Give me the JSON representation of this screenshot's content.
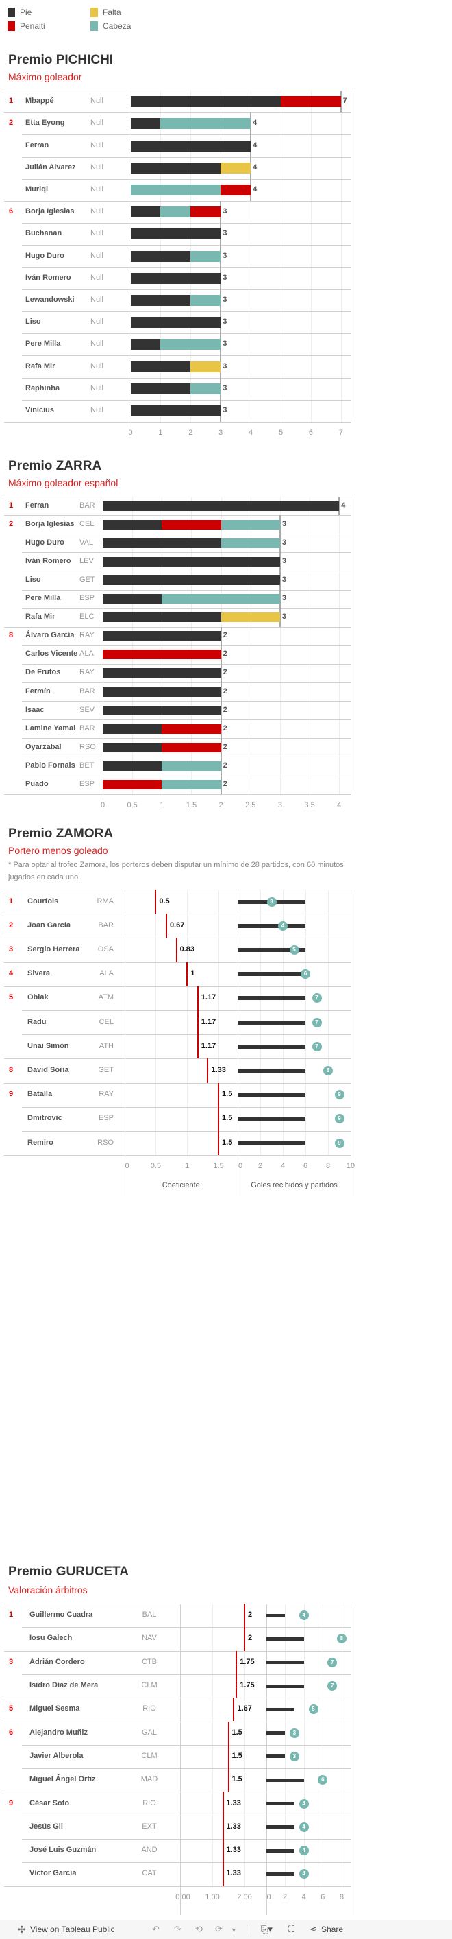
{
  "colors": {
    "Pie": "#333333",
    "Penalti": "#cc0000",
    "Falta": "#e8c547",
    "Cabeza": "#79b8b0",
    "accent": "#dd2222"
  },
  "legend": [
    {
      "label": "Pie",
      "color": "#333333"
    },
    {
      "label": "Penalti",
      "color": "#cc0000"
    },
    {
      "label": "Falta",
      "color": "#e8c547"
    },
    {
      "label": "Cabeza",
      "color": "#79b8b0"
    }
  ],
  "pichichi": {
    "title": "Premio PICHICHI",
    "subtitle": "Máximo goleador",
    "chart_data": {
      "type": "bar",
      "stacked": true,
      "xlim": [
        0,
        7.3
      ],
      "ticks": [
        "0",
        "1",
        "2",
        "3",
        "4",
        "5",
        "6",
        "7"
      ],
      "rows": [
        {
          "rank": "1",
          "name": "Mbappé",
          "team": "Null",
          "total": 7,
          "segments": [
            [
              "Pie",
              5
            ],
            [
              "Penalti",
              2
            ]
          ]
        },
        {
          "rank": "2",
          "name": "Etta Eyong",
          "team": "Null",
          "total": 4,
          "segments": [
            [
              "Pie",
              1
            ],
            [
              "Cabeza",
              3
            ]
          ]
        },
        {
          "rank": "",
          "name": "Ferran",
          "team": "Null",
          "total": 4,
          "segments": [
            [
              "Pie",
              4
            ]
          ]
        },
        {
          "rank": "",
          "name": "Julián Alvarez",
          "team": "Null",
          "total": 4,
          "segments": [
            [
              "Pie",
              3
            ],
            [
              "Falta",
              1
            ]
          ]
        },
        {
          "rank": "",
          "name": "Muriqi",
          "team": "Null",
          "total": 4,
          "segments": [
            [
              "Cabeza",
              3
            ],
            [
              "Penalti",
              1
            ]
          ]
        },
        {
          "rank": "6",
          "name": "Borja Iglesias",
          "team": "Null",
          "total": 3,
          "segments": [
            [
              "Pie",
              1
            ],
            [
              "Cabeza",
              1
            ],
            [
              "Penalti",
              1
            ]
          ]
        },
        {
          "rank": "",
          "name": "Buchanan",
          "team": "Null",
          "total": 3,
          "segments": [
            [
              "Pie",
              3
            ]
          ]
        },
        {
          "rank": "",
          "name": "Hugo Duro",
          "team": "Null",
          "total": 3,
          "segments": [
            [
              "Pie",
              2
            ],
            [
              "Cabeza",
              1
            ]
          ]
        },
        {
          "rank": "",
          "name": "Iván Romero",
          "team": "Null",
          "total": 3,
          "segments": [
            [
              "Pie",
              3
            ]
          ]
        },
        {
          "rank": "",
          "name": "Lewandowski",
          "team": "Null",
          "total": 3,
          "segments": [
            [
              "Pie",
              2
            ],
            [
              "Cabeza",
              1
            ]
          ]
        },
        {
          "rank": "",
          "name": "Liso",
          "team": "Null",
          "total": 3,
          "segments": [
            [
              "Pie",
              3
            ]
          ]
        },
        {
          "rank": "",
          "name": "Pere Milla",
          "team": "Null",
          "total": 3,
          "segments": [
            [
              "Pie",
              1
            ],
            [
              "Cabeza",
              2
            ]
          ]
        },
        {
          "rank": "",
          "name": "Rafa Mir",
          "team": "Null",
          "total": 3,
          "segments": [
            [
              "Pie",
              2
            ],
            [
              "Falta",
              1
            ]
          ]
        },
        {
          "rank": "",
          "name": "Raphinha",
          "team": "Null",
          "total": 3,
          "segments": [
            [
              "Pie",
              2
            ],
            [
              "Cabeza",
              1
            ]
          ]
        },
        {
          "rank": "",
          "name": "Vinicius",
          "team": "Null",
          "total": 3,
          "segments": [
            [
              "Pie",
              3
            ]
          ]
        }
      ]
    }
  },
  "zarra": {
    "title": "Premio ZARRA",
    "subtitle": "Máximo goleador español",
    "chart_data": {
      "type": "bar",
      "stacked": true,
      "xlim": [
        0,
        4.2
      ],
      "ticks": [
        "0",
        "0.5",
        "1",
        "1.5",
        "2",
        "2.5",
        "3",
        "3.5",
        "4"
      ],
      "rows": [
        {
          "rank": "1",
          "name": "Ferran",
          "team": "BAR",
          "total": 4,
          "segments": [
            [
              "Pie",
              4
            ]
          ]
        },
        {
          "rank": "2",
          "name": "Borja Iglesias",
          "team": "CEL",
          "total": 3,
          "segments": [
            [
              "Pie",
              1
            ],
            [
              "Penalti",
              1
            ],
            [
              "Cabeza",
              1
            ]
          ]
        },
        {
          "rank": "",
          "name": "Hugo Duro",
          "team": "VAL",
          "total": 3,
          "segments": [
            [
              "Pie",
              2
            ],
            [
              "Cabeza",
              1
            ]
          ]
        },
        {
          "rank": "",
          "name": "Iván Romero",
          "team": "LEV",
          "total": 3,
          "segments": [
            [
              "Pie",
              3
            ]
          ]
        },
        {
          "rank": "",
          "name": "Liso",
          "team": "GET",
          "total": 3,
          "segments": [
            [
              "Pie",
              3
            ]
          ]
        },
        {
          "rank": "",
          "name": "Pere Milla",
          "team": "ESP",
          "total": 3,
          "segments": [
            [
              "Pie",
              1
            ],
            [
              "Cabeza",
              2
            ]
          ]
        },
        {
          "rank": "",
          "name": "Rafa Mir",
          "team": "ELC",
          "total": 3,
          "segments": [
            [
              "Pie",
              2
            ],
            [
              "Falta",
              1
            ]
          ]
        },
        {
          "rank": "8",
          "name": "Álvaro García",
          "team": "RAY",
          "total": 2,
          "segments": [
            [
              "Pie",
              2
            ]
          ]
        },
        {
          "rank": "",
          "name": "Carlos Vicente",
          "team": "ALA",
          "total": 2,
          "segments": [
            [
              "Penalti",
              2
            ]
          ]
        },
        {
          "rank": "",
          "name": "De Frutos",
          "team": "RAY",
          "total": 2,
          "segments": [
            [
              "Pie",
              2
            ]
          ]
        },
        {
          "rank": "",
          "name": "Fermín",
          "team": "BAR",
          "total": 2,
          "segments": [
            [
              "Pie",
              2
            ]
          ]
        },
        {
          "rank": "",
          "name": "Isaac",
          "team": "SEV",
          "total": 2,
          "segments": [
            [
              "Pie",
              2
            ]
          ]
        },
        {
          "rank": "",
          "name": "Lamine Yamal",
          "team": "BAR",
          "total": 2,
          "segments": [
            [
              "Pie",
              1
            ],
            [
              "Penalti",
              1
            ]
          ]
        },
        {
          "rank": "",
          "name": "Oyarzabal",
          "team": "RSO",
          "total": 2,
          "segments": [
            [
              "Pie",
              1
            ],
            [
              "Penalti",
              1
            ]
          ]
        },
        {
          "rank": "",
          "name": "Pablo Fornals",
          "team": "BET",
          "total": 2,
          "segments": [
            [
              "Pie",
              1
            ],
            [
              "Cabeza",
              1
            ]
          ]
        },
        {
          "rank": "",
          "name": "Puado",
          "team": "ESP",
          "total": 2,
          "segments": [
            [
              "Penalti",
              1
            ],
            [
              "Cabeza",
              1
            ]
          ]
        }
      ]
    }
  },
  "zamora": {
    "title": "Premio ZAMORA",
    "subtitle": "Portero menos goleado",
    "note": "* Para optar al trofeo Zamora, los porteros deben disputar un mínimo de 28 partidos, con 60 minutos jugados en cada uno.",
    "chart_data": {
      "type": "table",
      "coef_axis": {
        "title": "Coeficiente",
        "xlim": [
          0,
          1.8
        ],
        "ticks": [
          "0",
          "0.5",
          "1",
          "1.5"
        ]
      },
      "goals_axis": {
        "title": "Goles recibidos y partidos",
        "xlim": [
          0,
          10
        ],
        "ticks": [
          "0",
          "2",
          "4",
          "6",
          "8",
          "10"
        ]
      },
      "rows": [
        {
          "rank": "1",
          "name": "Courtois",
          "team": "RMA",
          "coef": "0.5",
          "partidos": 6,
          "goles": "3"
        },
        {
          "rank": "2",
          "name": "Joan García",
          "team": "BAR",
          "coef": "0.67",
          "partidos": 6,
          "goles": "4"
        },
        {
          "rank": "3",
          "name": "Sergio Herrera",
          "team": "OSA",
          "coef": "0.83",
          "partidos": 6,
          "goles": "5"
        },
        {
          "rank": "4",
          "name": "Sivera",
          "team": "ALA",
          "coef": "1",
          "partidos": 6,
          "goles": "6"
        },
        {
          "rank": "5",
          "name": "Oblak",
          "team": "ATM",
          "coef": "1.17",
          "partidos": 6,
          "goles": "7"
        },
        {
          "rank": "",
          "name": "Radu",
          "team": "CEL",
          "coef": "1.17",
          "partidos": 6,
          "goles": "7"
        },
        {
          "rank": "",
          "name": "Unai Simón",
          "team": "ATH",
          "coef": "1.17",
          "partidos": 6,
          "goles": "7"
        },
        {
          "rank": "8",
          "name": "David Soria",
          "team": "GET",
          "coef": "1.33",
          "partidos": 6,
          "goles": "8"
        },
        {
          "rank": "9",
          "name": "Batalla",
          "team": "RAY",
          "coef": "1.5",
          "partidos": 6,
          "goles": "9"
        },
        {
          "rank": "",
          "name": "Dmitrovic",
          "team": "ESP",
          "coef": "1.5",
          "partidos": 6,
          "goles": "9"
        },
        {
          "rank": "",
          "name": "Remiro",
          "team": "RSO",
          "coef": "1.5",
          "partidos": 6,
          "goles": "9"
        }
      ]
    }
  },
  "guruceta": {
    "title": "Premio GURUCETA",
    "subtitle": "Valoración árbitros",
    "chart_data": {
      "type": "table",
      "coef_axis": {
        "title": "",
        "xlim": [
          0,
          2.66
        ],
        "ticks": [
          "0.00",
          "1.00",
          "2.00"
        ]
      },
      "goals_axis": {
        "title": "",
        "xlim": [
          0,
          8.9
        ],
        "ticks": [
          "0",
          "2",
          "4",
          "6",
          "8"
        ]
      },
      "rows": [
        {
          "rank": "1",
          "name": "Guillermo Cuadra",
          "team": "BAL",
          "coef": "2",
          "partidos": 2,
          "goles": "4"
        },
        {
          "rank": "",
          "name": "Iosu Galech",
          "team": "NAV",
          "coef": "2",
          "partidos": 4,
          "goles": "8"
        },
        {
          "rank": "3",
          "name": "Adrián Cordero",
          "team": "CTB",
          "coef": "1.75",
          "partidos": 4,
          "goles": "7"
        },
        {
          "rank": "",
          "name": "Isidro Díaz de Mera",
          "team": "CLM",
          "coef": "1.75",
          "partidos": 4,
          "goles": "7"
        },
        {
          "rank": "5",
          "name": "Miguel Sesma",
          "team": "RIO",
          "coef": "1.67",
          "partidos": 3,
          "goles": "5"
        },
        {
          "rank": "6",
          "name": "Alejandro Muñiz",
          "team": "GAL",
          "coef": "1.5",
          "partidos": 2,
          "goles": "3"
        },
        {
          "rank": "",
          "name": "Javier Alberola",
          "team": "CLM",
          "coef": "1.5",
          "partidos": 2,
          "goles": "3"
        },
        {
          "rank": "",
          "name": "Miguel Ángel Ortiz",
          "team": "MAD",
          "coef": "1.5",
          "partidos": 4,
          "goles": "6"
        },
        {
          "rank": "9",
          "name": "César Soto",
          "team": "RIO",
          "coef": "1.33",
          "partidos": 3,
          "goles": "4"
        },
        {
          "rank": "",
          "name": "Jesús Gil",
          "team": "EXT",
          "coef": "1.33",
          "partidos": 3,
          "goles": "4"
        },
        {
          "rank": "",
          "name": "José Luis Guzmán",
          "team": "AND",
          "coef": "1.33",
          "partidos": 3,
          "goles": "4"
        },
        {
          "rank": "",
          "name": "Víctor García",
          "team": "CAT",
          "coef": "1.33",
          "partidos": 3,
          "goles": "4"
        }
      ]
    }
  },
  "footer": {
    "view_label": "View on Tableau Public",
    "share_label": "Share"
  }
}
